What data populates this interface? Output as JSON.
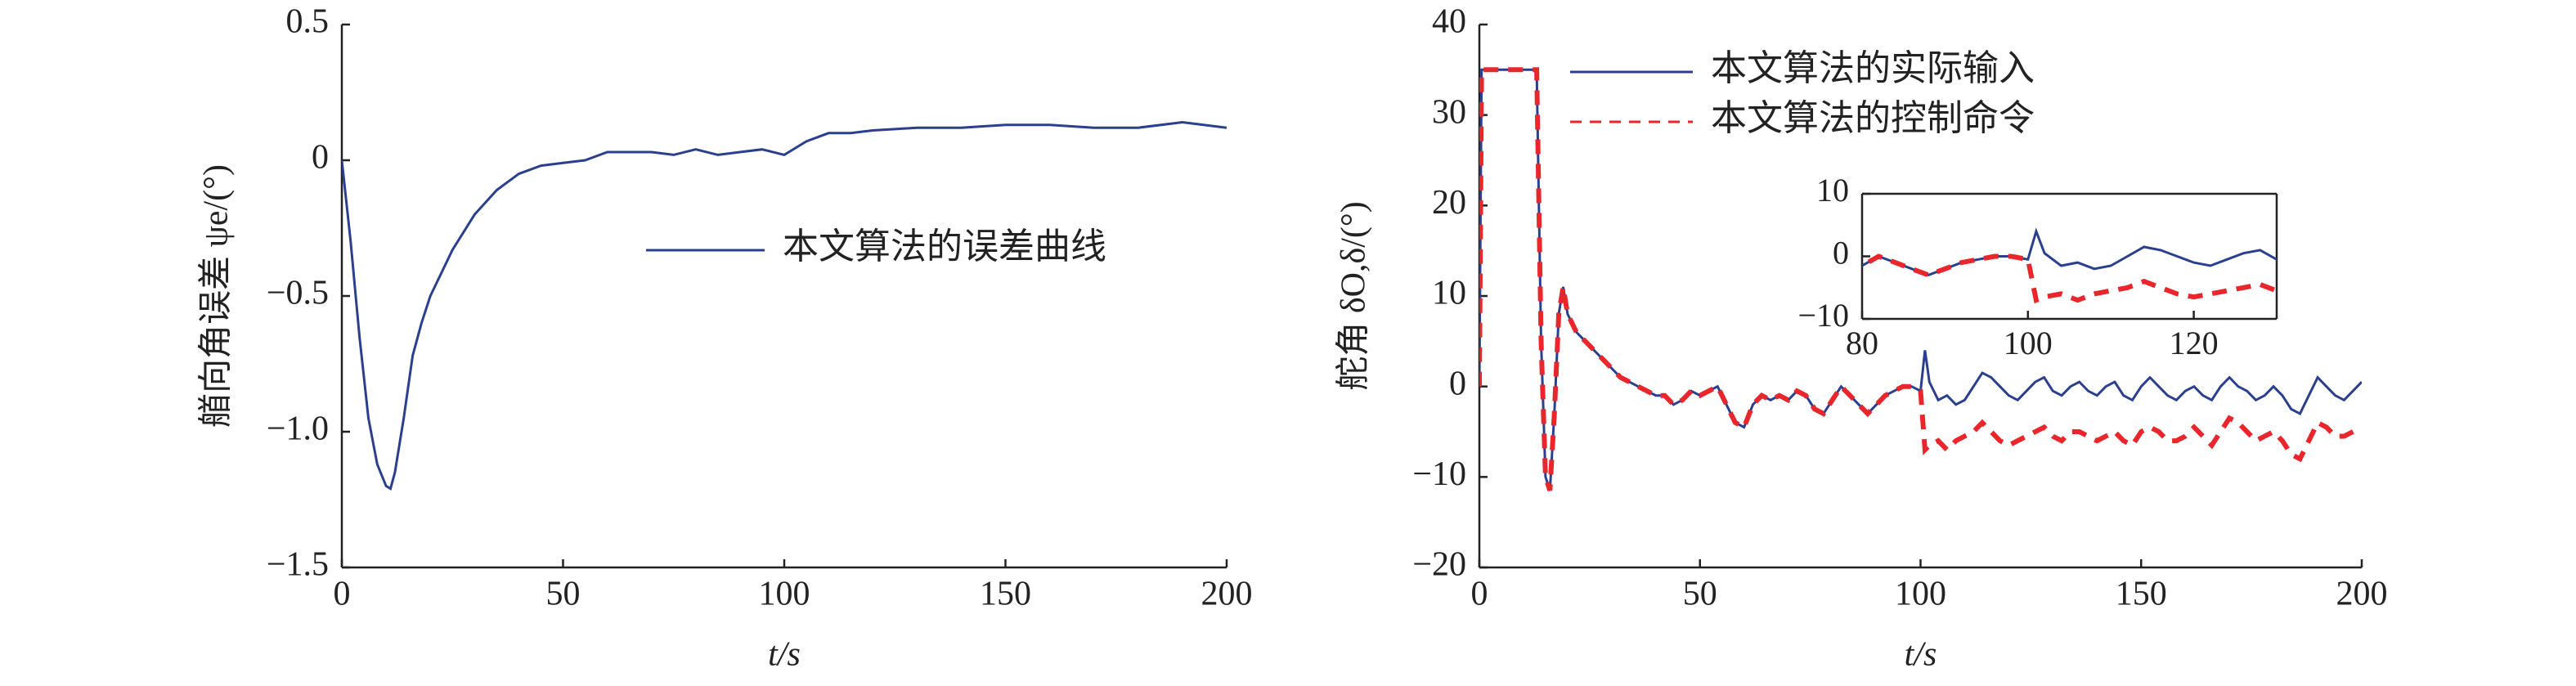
{
  "chart_data": [
    {
      "type": "line",
      "xlabel": "t/s",
      "ylabel": "艏向角误差 ψe/(°)",
      "xlim": [
        0,
        200
      ],
      "xticks": [
        0,
        50,
        100,
        150,
        200
      ],
      "ylim": [
        -1.5,
        0.5
      ],
      "yticks": [
        0.5,
        0,
        {
          "value": -0.5,
          "label": "−0.5"
        },
        {
          "value": -1.0,
          "label": "−1.0"
        },
        {
          "value": -1.5,
          "label": "−1.5"
        }
      ],
      "x": [
        0,
        2,
        4,
        6,
        8,
        10,
        11,
        12,
        14,
        16,
        18,
        20,
        25,
        30,
        35,
        40,
        45,
        50,
        55,
        60,
        65,
        70,
        75,
        80,
        85,
        90,
        95,
        100,
        105,
        110,
        115,
        120,
        130,
        140,
        150,
        160,
        170,
        180,
        190,
        200
      ],
      "series": [
        {
          "name": "本文算法的误差曲线",
          "color": "#2b3f8f",
          "dash": false,
          "values": [
            0,
            -0.3,
            -0.65,
            -0.95,
            -1.12,
            -1.2,
            -1.21,
            -1.15,
            -0.95,
            -0.72,
            -0.6,
            -0.5,
            -0.33,
            -0.2,
            -0.11,
            -0.05,
            -0.02,
            -0.01,
            0,
            0.03,
            0.03,
            0.03,
            0.02,
            0.04,
            0.02,
            0.03,
            0.04,
            0.02,
            0.07,
            0.1,
            0.1,
            0.11,
            0.12,
            0.12,
            0.13,
            0.13,
            0.12,
            0.12,
            0.14,
            0.12
          ]
        }
      ]
    },
    {
      "type": "line",
      "xlabel": "t/s",
      "ylabel": "舵角 δO,δ/(°)",
      "xlim": [
        0,
        200
      ],
      "xticks": [
        0,
        50,
        100,
        150,
        200
      ],
      "ylim": [
        -20,
        40
      ],
      "yticks": [
        40,
        30,
        20,
        10,
        0,
        {
          "value": -10,
          "label": "−10"
        },
        {
          "value": -20,
          "label": "−20"
        }
      ],
      "x": [
        0,
        0.5,
        2,
        4,
        6,
        8,
        10,
        12,
        13,
        13.5,
        14,
        15,
        16,
        17,
        18,
        19,
        20,
        22,
        24,
        26,
        28,
        30,
        32,
        34,
        36,
        38,
        40,
        42,
        44,
        46,
        48,
        50,
        52,
        54,
        56,
        58,
        60,
        62,
        64,
        66,
        68,
        70,
        72,
        74,
        76,
        78,
        80,
        82,
        84,
        86,
        88,
        90,
        92,
        94,
        96,
        98,
        100,
        101,
        102,
        104,
        106,
        108,
        110,
        112,
        114,
        116,
        118,
        120,
        122,
        124,
        126,
        128,
        130,
        132,
        134,
        136,
        138,
        140,
        142,
        144,
        146,
        148,
        150,
        152,
        154,
        156,
        158,
        160,
        162,
        164,
        166,
        168,
        170,
        172,
        174,
        176,
        178,
        180,
        182,
        184,
        186,
        188,
        190,
        192,
        194,
        196,
        198,
        200
      ],
      "series": [
        {
          "name": "本文算法的实际输入",
          "color": "#2b3f8f",
          "dash": false,
          "values": [
            0,
            35,
            35,
            35,
            35,
            35,
            35,
            35,
            35,
            20,
            5,
            -10,
            -11.5,
            -3,
            8,
            11,
            8,
            6,
            5,
            4,
            3,
            2,
            1,
            0.5,
            0,
            -0.5,
            -1,
            -1,
            -2,
            -1.5,
            -0.5,
            -1,
            -0.5,
            0,
            -2,
            -4,
            -4.5,
            -2,
            -1,
            -1.5,
            -1,
            -1.5,
            -0.5,
            -1,
            -2.5,
            -3,
            -1.5,
            0,
            -1,
            -2,
            -3,
            -2,
            -1,
            -0.5,
            0,
            0,
            -0.5,
            4,
            0.5,
            -1.5,
            -1,
            -2,
            -1.5,
            0,
            1.5,
            1,
            0,
            -1,
            -1.5,
            -0.5,
            0.5,
            1,
            -0.5,
            -1,
            0,
            0.5,
            -0.5,
            -1,
            0,
            0.5,
            -1,
            -1.5,
            0,
            1,
            0,
            -1,
            -1.5,
            -0.5,
            0,
            -1,
            -1.5,
            0,
            1,
            0,
            -0.5,
            -1.5,
            -1,
            0,
            -1,
            -2.5,
            -3,
            -1,
            1,
            0,
            -1,
            -1.5,
            -0.5,
            0.5
          ]
        },
        {
          "name": "本文算法的控制命令",
          "color": "#e8262b",
          "dash": true,
          "values": [
            0,
            35,
            35,
            35,
            35,
            35,
            35,
            35,
            35,
            20,
            5,
            -10,
            -11.5,
            -3,
            8,
            11,
            8,
            6,
            5,
            4,
            3,
            2,
            1,
            0.5,
            0,
            -0.5,
            -1,
            -1,
            -2,
            -1.5,
            -0.5,
            -1,
            -0.5,
            0,
            -2,
            -4,
            -4.5,
            -2,
            -1,
            -1.5,
            -1,
            -1.5,
            -0.5,
            -1,
            -2.5,
            -3,
            -1.5,
            0,
            -1,
            -2,
            -3,
            -2,
            -1,
            -0.5,
            0,
            0,
            -0.5,
            -7,
            -6.5,
            -6,
            -7,
            -6,
            -5.5,
            -5,
            -4,
            -5,
            -6,
            -6.5,
            -6,
            -5.5,
            -5,
            -4.5,
            -5.5,
            -6,
            -5,
            -5,
            -5.5,
            -6,
            -5.5,
            -5,
            -6,
            -6.5,
            -5,
            -4.5,
            -5,
            -6,
            -6,
            -5.5,
            -4.5,
            -5.5,
            -6.5,
            -5,
            -3.5,
            -4,
            -5,
            -6,
            -5.5,
            -5,
            -6,
            -7.5,
            -8,
            -6,
            -4,
            -4.5,
            -5.5,
            -5.5,
            -5,
            -4.5
          ]
        }
      ],
      "inset": {
        "xlim": [
          80,
          130
        ],
        "xticks": [
          80,
          100,
          120
        ],
        "ylim": [
          -10,
          10
        ],
        "yticks": [
          10,
          0,
          {
            "value": -10,
            "label": "−10"
          }
        ]
      }
    }
  ]
}
